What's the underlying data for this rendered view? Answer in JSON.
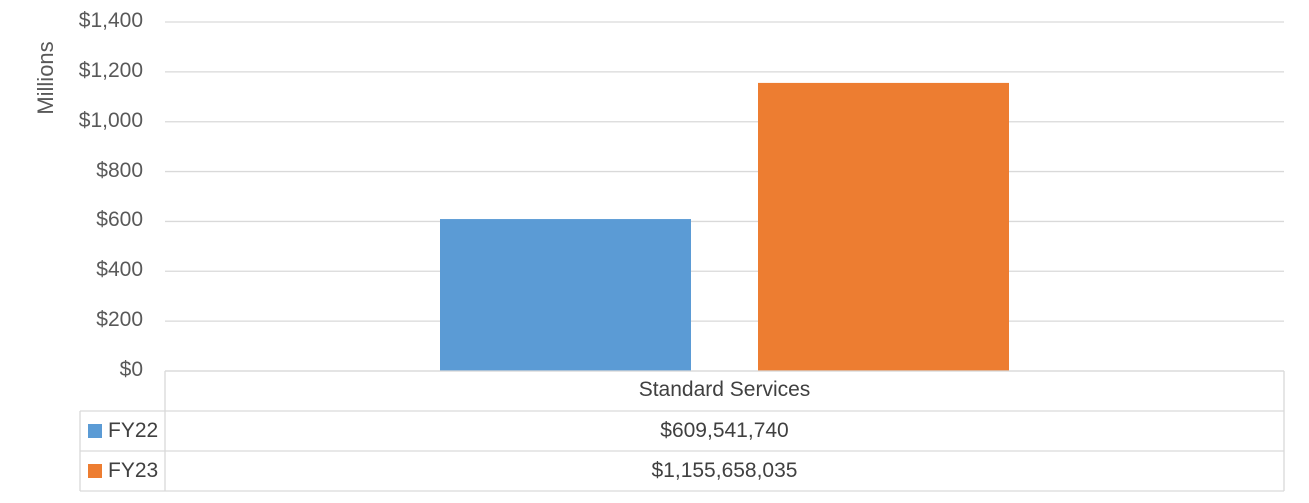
{
  "colors": {
    "FY22": "#5B9BD5",
    "FY23": "#ED7D31",
    "grid": "#D9D9D9",
    "text": "#595959"
  },
  "chart_data": {
    "type": "bar",
    "ylabel": "Millions",
    "ylim": [
      0,
      1400
    ],
    "y_ticks": [
      "$0",
      "$200",
      "$400",
      "$600",
      "$800",
      "$1,000",
      "$1,200",
      "$1,400"
    ],
    "y_tick_values": [
      0,
      200,
      400,
      600,
      800,
      1000,
      1200,
      1400
    ],
    "categories": [
      "Standard Services"
    ],
    "grid": true,
    "legend": "data-table",
    "series": [
      {
        "name": "FY22",
        "values": [
          609.54174
        ],
        "label": "$609,541,740"
      },
      {
        "name": "FY23",
        "values": [
          1155.658035
        ],
        "label": "$1,155,658,035"
      }
    ]
  }
}
